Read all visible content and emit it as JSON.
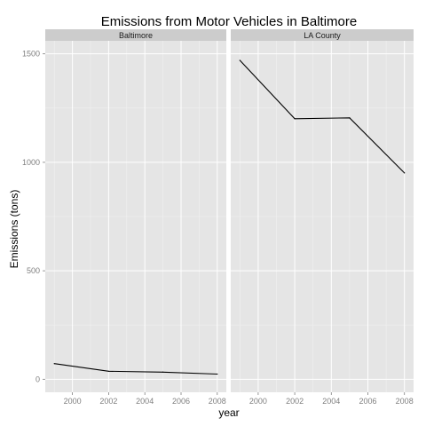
{
  "chart_data": {
    "type": "line",
    "title": "Emissions from Motor Vehicles in Baltimore",
    "xlabel": "year",
    "ylabel": "Emissions (tons)",
    "x_ticks": [
      2000,
      2002,
      2004,
      2006,
      2008
    ],
    "y_ticks": [
      0,
      500,
      1000,
      1500
    ],
    "xlim": [
      1998.5,
      2008.5
    ],
    "ylim": [
      -60,
      1560
    ],
    "grid": true,
    "facets": [
      {
        "label": "Baltimore",
        "x": [
          1999,
          2002,
          2005,
          2008
        ],
        "y": [
          72,
          37,
          33,
          24
        ]
      },
      {
        "label": "LA County",
        "x": [
          1999,
          2002,
          2005,
          2008
        ],
        "y": [
          1470,
          1201,
          1205,
          951
        ]
      }
    ]
  },
  "colors": {
    "panel_bg": "#e5e5e5",
    "strip_bg": "#cccccc",
    "grid_major": "#ffffff",
    "grid_minor": "#f2f2f2",
    "line": "#000000"
  }
}
